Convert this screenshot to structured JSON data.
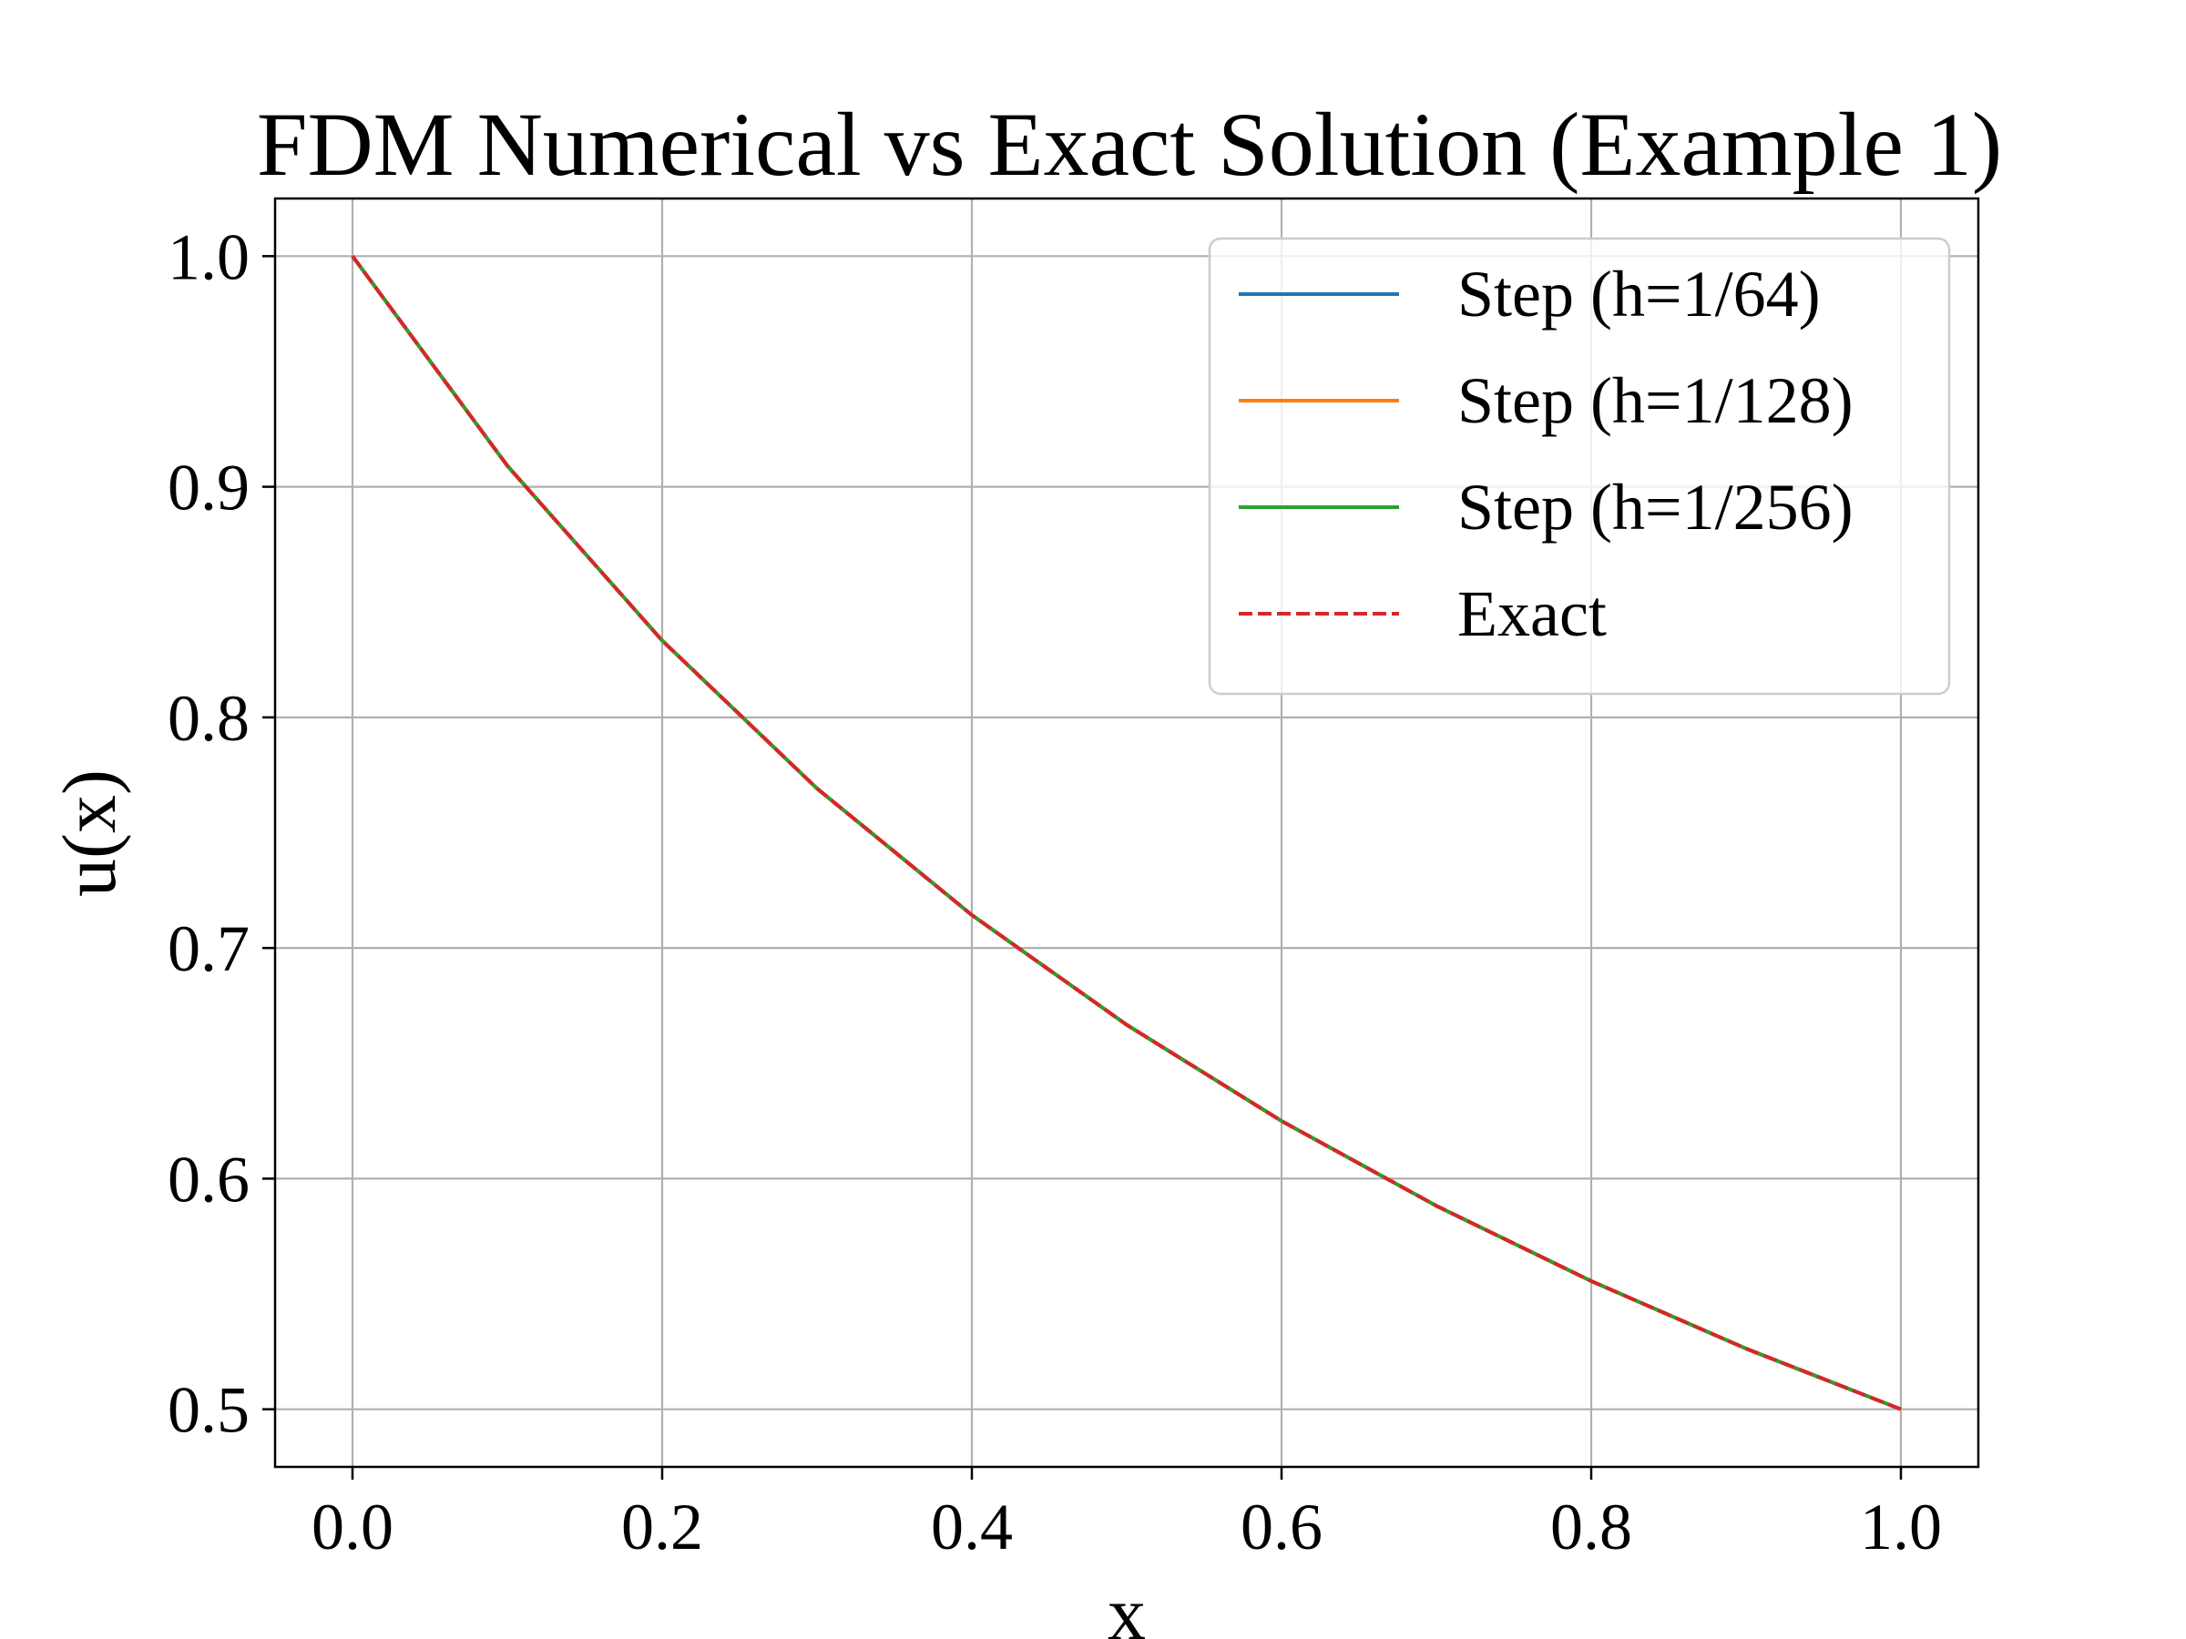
{
  "chart_data": {
    "type": "line",
    "title": "FDM Numerical vs Exact Solution (Example 1)",
    "xlabel": "x",
    "ylabel": "u(x)",
    "xlim": [
      -0.05,
      1.05
    ],
    "ylim": [
      0.475,
      1.025
    ],
    "xticks": [
      "0.0",
      "0.2",
      "0.4",
      "0.6",
      "0.8",
      "1.0"
    ],
    "yticks": [
      "0.5",
      "0.6",
      "0.7",
      "0.8",
      "0.9",
      "1.0"
    ],
    "grid": true,
    "legend_position": "upper right",
    "x": [
      0.0,
      0.1,
      0.2,
      0.3,
      0.4,
      0.5,
      0.6,
      0.7,
      0.8,
      0.9,
      1.0
    ],
    "series": [
      {
        "name": "Step (h=1/64)",
        "color": "#1f77b4",
        "style": "solid",
        "values": [
          1.0,
          0.9091,
          0.8333,
          0.7692,
          0.7143,
          0.6667,
          0.625,
          0.5882,
          0.5556,
          0.5263,
          0.5
        ]
      },
      {
        "name": "Step (h=1/128)",
        "color": "#ff7f0e",
        "style": "solid",
        "values": [
          1.0,
          0.9091,
          0.8333,
          0.7692,
          0.7143,
          0.6667,
          0.625,
          0.5882,
          0.5556,
          0.5263,
          0.5
        ]
      },
      {
        "name": "Step (h=1/256)",
        "color": "#2ca02c",
        "style": "solid",
        "values": [
          1.0,
          0.9091,
          0.8333,
          0.7692,
          0.7143,
          0.6667,
          0.625,
          0.5882,
          0.5556,
          0.5263,
          0.5
        ]
      },
      {
        "name": "Exact",
        "color": "#d62728",
        "style": "dashed",
        "values": [
          1.0,
          0.9091,
          0.8333,
          0.7692,
          0.7143,
          0.6667,
          0.625,
          0.5882,
          0.5556,
          0.5263,
          0.5
        ]
      }
    ]
  }
}
